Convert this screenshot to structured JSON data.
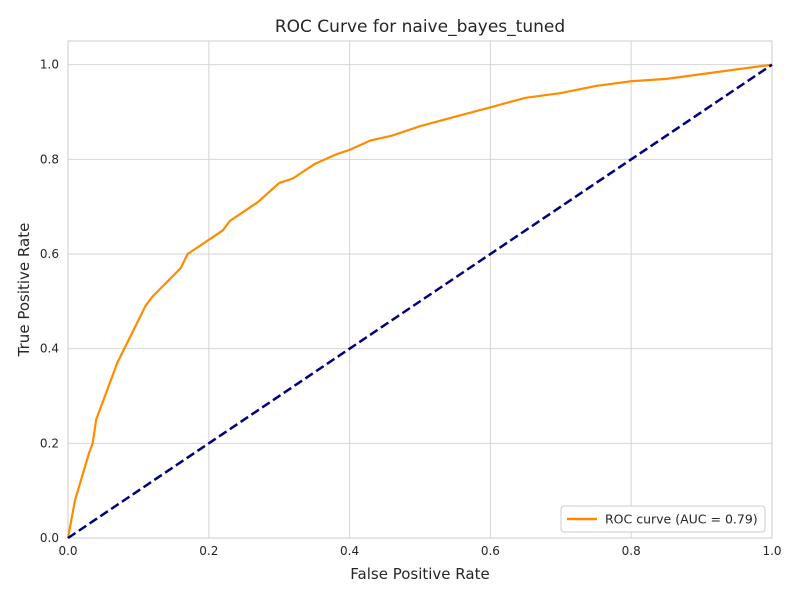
{
  "chart_data": {
    "type": "line",
    "title": "ROC Curve for naive_bayes_tuned",
    "xlabel": "False Positive Rate",
    "ylabel": "True Positive Rate",
    "xlim": [
      0.0,
      1.0
    ],
    "ylim": [
      0.0,
      1.05
    ],
    "x_ticks": [
      0.0,
      0.2,
      0.4,
      0.6,
      0.8,
      1.0
    ],
    "y_ticks": [
      0.0,
      0.2,
      0.4,
      0.6,
      0.8,
      1.0
    ],
    "x_tick_labels": [
      "0.0",
      "0.2",
      "0.4",
      "0.6",
      "0.8",
      "1.0"
    ],
    "y_tick_labels": [
      "0.0",
      "0.2",
      "0.4",
      "0.6",
      "0.8",
      "1.0"
    ],
    "grid": true,
    "legend_position": "lower-right",
    "series": [
      {
        "name": "ROC curve (AUC = 0.79)",
        "color": "#ff8c00",
        "style": "solid",
        "x": [
          0.0,
          0.005,
          0.01,
          0.02,
          0.03,
          0.035,
          0.04,
          0.05,
          0.06,
          0.07,
          0.08,
          0.09,
          0.1,
          0.11,
          0.12,
          0.14,
          0.16,
          0.17,
          0.18,
          0.2,
          0.22,
          0.23,
          0.25,
          0.27,
          0.3,
          0.32,
          0.35,
          0.38,
          0.4,
          0.43,
          0.46,
          0.5,
          0.55,
          0.6,
          0.65,
          0.7,
          0.75,
          0.8,
          0.85,
          0.9,
          0.95,
          1.0
        ],
        "y": [
          0.0,
          0.04,
          0.08,
          0.13,
          0.18,
          0.2,
          0.25,
          0.29,
          0.33,
          0.37,
          0.4,
          0.43,
          0.46,
          0.49,
          0.51,
          0.54,
          0.57,
          0.6,
          0.61,
          0.63,
          0.65,
          0.67,
          0.69,
          0.71,
          0.75,
          0.76,
          0.79,
          0.81,
          0.82,
          0.84,
          0.85,
          0.87,
          0.89,
          0.91,
          0.93,
          0.94,
          0.955,
          0.965,
          0.97,
          0.98,
          0.99,
          1.0
        ]
      },
      {
        "name": "",
        "color": "#000080",
        "style": "dashed",
        "x": [
          0.0,
          1.0
        ],
        "y": [
          0.0,
          1.0
        ]
      }
    ]
  }
}
